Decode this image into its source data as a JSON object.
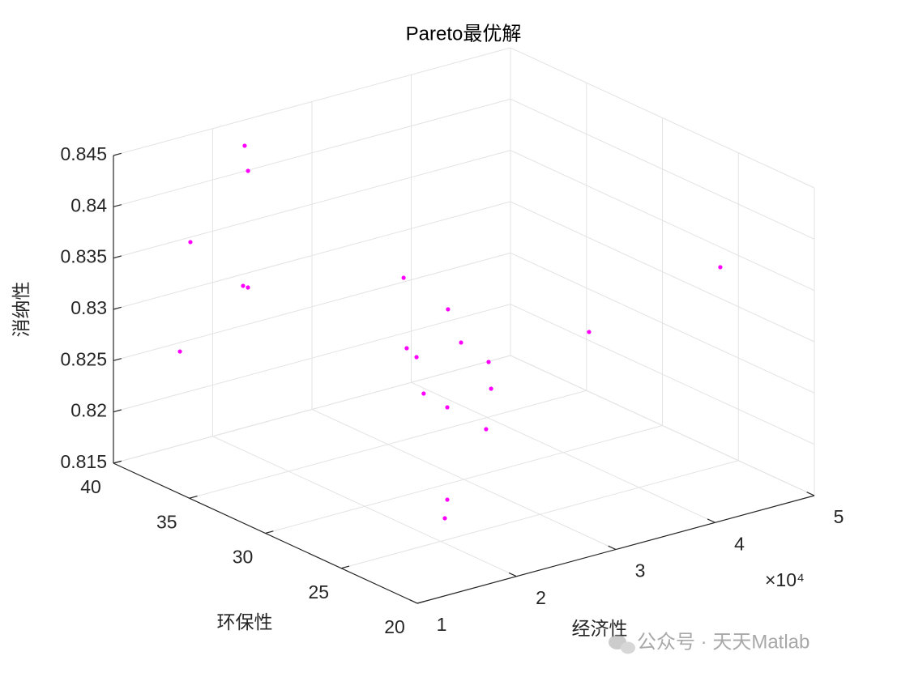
{
  "chart_data": {
    "type": "scatter3d",
    "title": "Pareto最优解",
    "xlabel": "经济性",
    "ylabel": "环保性",
    "zlabel": "消纳性",
    "x_exponent_label": "×10⁴",
    "watermark": "公众号 · 天天Matlab",
    "color": "#ff00ff",
    "grid": true,
    "xlim": [
      10000,
      50000
    ],
    "xticks": [
      {
        "value": 10000,
        "label": "1"
      },
      {
        "value": 20000,
        "label": "2"
      },
      {
        "value": 30000,
        "label": "3"
      },
      {
        "value": 40000,
        "label": "4"
      },
      {
        "value": 50000,
        "label": "5"
      }
    ],
    "ylim": [
      20,
      40
    ],
    "yticks": [
      20,
      25,
      30,
      35,
      40
    ],
    "zlim": [
      0.815,
      0.845
    ],
    "zticks": [
      0.815,
      0.82,
      0.825,
      0.83,
      0.835,
      0.84,
      0.845
    ],
    "x": [
      20510,
      20650,
      16510,
      19340,
      19420,
      14770,
      24280,
      26990,
      27480,
      25370,
      26040,
      30790,
      31500,
      26560,
      28280,
      29850,
      24040,
      22600,
      45820,
      37050
    ],
    "y": [
      38.23,
      38.1,
      39.19,
      37.57,
      37.3,
      38.74,
      30.23,
      29.08,
      28.54,
      30.74,
      30.53,
      28.89,
      29.19,
      30.4,
      29.97,
      28.44,
      27.2,
      26.42,
      23.46,
      26.37
    ],
    "z": [
      0.8444,
      0.842,
      0.8354,
      0.8315,
      0.8315,
      0.8255,
      0.836,
      0.833,
      0.83,
      0.8285,
      0.8276,
      0.827,
      0.824,
      0.824,
      0.8225,
      0.821,
      0.8165,
      0.8156,
      0.836,
      0.83
    ]
  }
}
